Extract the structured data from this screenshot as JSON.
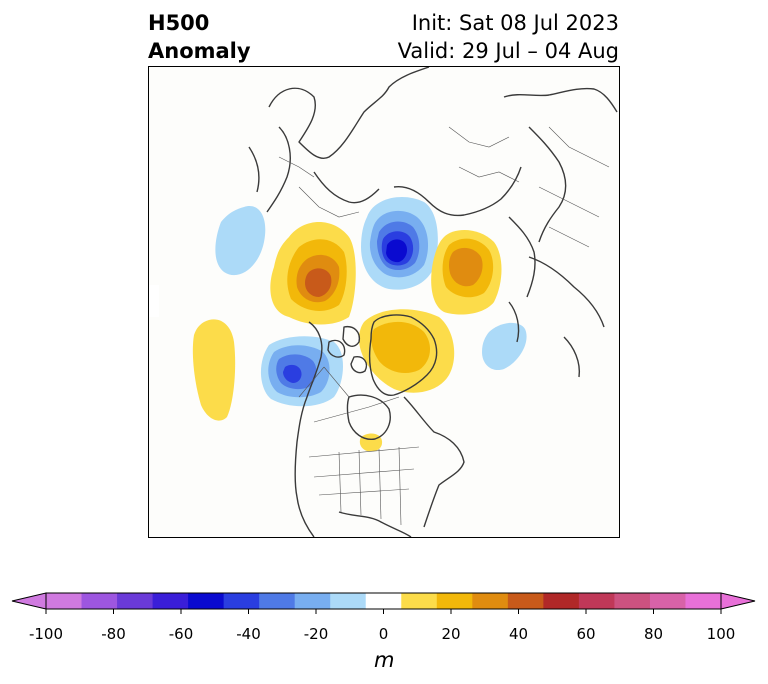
{
  "header": {
    "title_line1": "H500",
    "title_line2": "Anomaly",
    "init": "Init: Sat 08 Jul 2023",
    "valid": "Valid: 29 Jul – 04 Aug"
  },
  "map": {
    "variable": "500 hPa geopotential height anomaly",
    "features": [
      {
        "name": "negative-anomaly-polar",
        "sign": "negative",
        "peak_m": -60
      },
      {
        "name": "positive-anomaly-central-canada",
        "sign": "positive",
        "peak_m": 50
      },
      {
        "name": "positive-anomaly-eastern-siberia",
        "sign": "positive",
        "peak_m": 30
      },
      {
        "name": "negative-anomaly-gulf-of-alaska",
        "sign": "negative",
        "peak_m": -50
      },
      {
        "name": "positive-anomaly-north-pacific",
        "sign": "positive",
        "peak_m": 10
      },
      {
        "name": "positive-anomaly-greenland",
        "sign": "positive",
        "peak_m": 30
      },
      {
        "name": "negative-anomaly-west-pacific",
        "sign": "negative",
        "peak_m": -20
      },
      {
        "name": "negative-anomaly-aleutian",
        "sign": "negative",
        "peak_m": -20
      },
      {
        "name": "positive-anomaly-hudson-bay",
        "sign": "positive",
        "peak_m": 10
      }
    ]
  },
  "colorbar": {
    "unit": "m",
    "ticks": [
      "-100",
      "-80",
      "-60",
      "-40",
      "-20",
      "0",
      "20",
      "40",
      "60",
      "80",
      "100"
    ],
    "bins": [
      {
        "value": -95,
        "color": "#d07ae0"
      },
      {
        "value": -85,
        "color": "#9d56e0"
      },
      {
        "value": -75,
        "color": "#6a3ad8"
      },
      {
        "value": -65,
        "color": "#3a1ed8"
      },
      {
        "value": -55,
        "color": "#0a0ad0"
      },
      {
        "value": -45,
        "color": "#2a3ee0"
      },
      {
        "value": -35,
        "color": "#4f7ae6"
      },
      {
        "value": -25,
        "color": "#78aef0"
      },
      {
        "value": -15,
        "color": "#acdaf8"
      },
      {
        "value": 0,
        "color": "#ffffff"
      },
      {
        "value": 15,
        "color": "#fcdc4a"
      },
      {
        "value": 25,
        "color": "#f2b80a"
      },
      {
        "value": 35,
        "color": "#e08c10"
      },
      {
        "value": 45,
        "color": "#c85a1a"
      },
      {
        "value": 55,
        "color": "#b02828"
      },
      {
        "value": 65,
        "color": "#c03858"
      },
      {
        "value": 75,
        "color": "#cc5280"
      },
      {
        "value": 85,
        "color": "#d862a8"
      },
      {
        "value": 95,
        "color": "#e870d8"
      }
    ]
  }
}
